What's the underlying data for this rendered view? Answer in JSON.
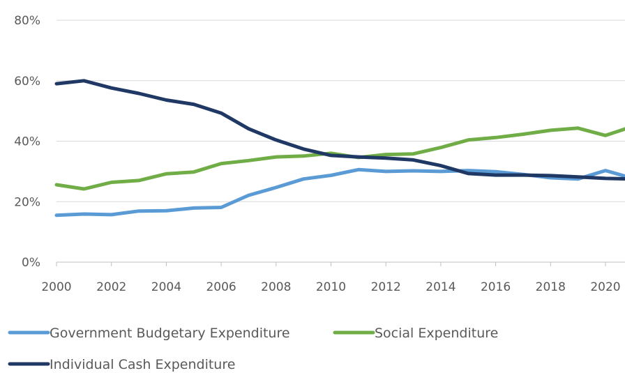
{
  "chart_data": {
    "type": "line",
    "title": "",
    "xlabel": "",
    "ylabel": "",
    "x": [
      2000,
      2001,
      2002,
      2003,
      2004,
      2005,
      2006,
      2007,
      2008,
      2009,
      2010,
      2011,
      2012,
      2013,
      2014,
      2015,
      2016,
      2017,
      2018,
      2019,
      2020,
      2021
    ],
    "x_tick_labels": [
      "2000",
      "2002",
      "2004",
      "2006",
      "2008",
      "2010",
      "2012",
      "2014",
      "2016",
      "2018",
      "2020"
    ],
    "y_tick_labels": [
      "0%",
      "20%",
      "40%",
      "60%",
      "80%"
    ],
    "ylim": [
      0,
      80
    ],
    "y_unit": "%",
    "grid": "horizontal",
    "legend_position": "bottom",
    "series": [
      {
        "name": "Government Budgetary Expenditure",
        "color": "#5b9bd5",
        "values": [
          15.5,
          15.9,
          15.7,
          16.9,
          17.0,
          17.9,
          18.1,
          22.1,
          24.7,
          27.5,
          28.7,
          30.6,
          30.0,
          30.2,
          30.0,
          30.3,
          29.9,
          29.0,
          27.9,
          27.5,
          30.3,
          27.7
        ]
      },
      {
        "name": "Social Expenditure",
        "color": "#70ad47",
        "values": [
          25.6,
          24.2,
          26.4,
          27.0,
          29.2,
          29.8,
          32.6,
          33.6,
          34.8,
          35.1,
          36.0,
          34.6,
          35.6,
          35.8,
          37.9,
          40.4,
          41.2,
          42.3,
          43.6,
          44.3,
          41.9,
          44.9
        ]
      },
      {
        "name": "Individual Cash Expenditure",
        "color": "#1f3864",
        "values": [
          59.0,
          60.0,
          57.6,
          55.8,
          53.6,
          52.2,
          49.3,
          44.1,
          40.4,
          37.4,
          35.3,
          34.8,
          34.4,
          33.8,
          31.9,
          29.3,
          28.8,
          28.8,
          28.6,
          28.2,
          27.7,
          27.5
        ]
      }
    ]
  }
}
